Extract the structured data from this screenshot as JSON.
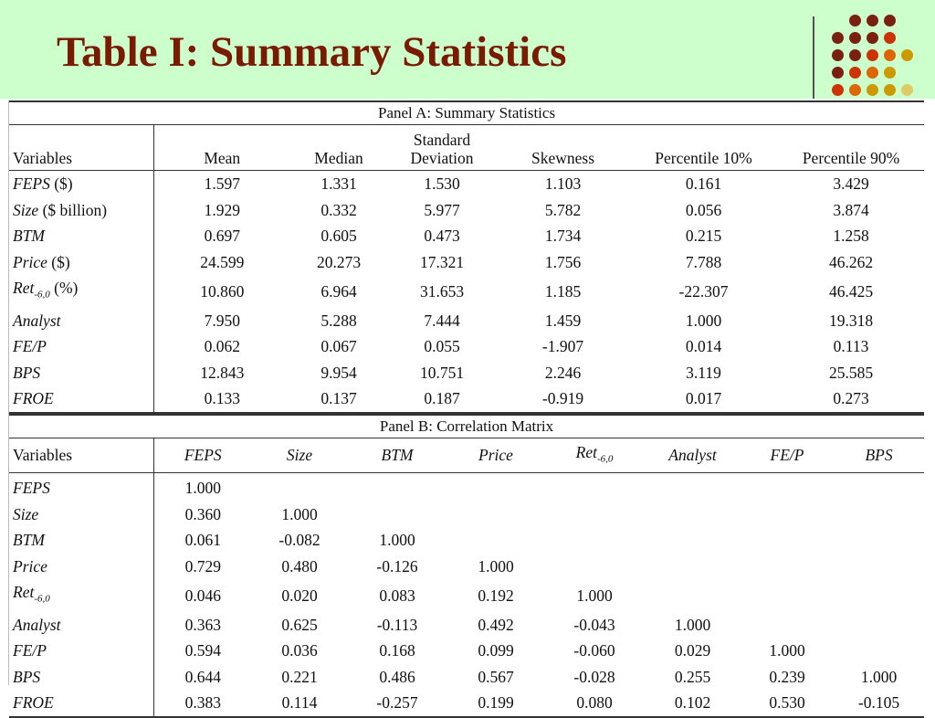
{
  "slide": {
    "title": "Table I: Summary Statistics"
  },
  "panel_a": {
    "title": "Panel A: Summary Statistics",
    "headers": [
      "Variables",
      "Mean",
      "Median",
      "Standard\nDeviation",
      "Skewness",
      "Percentile 10%",
      "Percentile 90%"
    ],
    "rows": [
      {
        "var": "FEPS",
        "unit": " ($)",
        "values": [
          "1.597",
          "1.331",
          "1.530",
          "1.103",
          "0.161",
          "3.429"
        ]
      },
      {
        "var": "Size",
        "unit": " ($ billion)",
        "values": [
          "1.929",
          "0.332",
          "5.977",
          "5.782",
          "0.056",
          "3.874"
        ]
      },
      {
        "var": "BTM",
        "unit": "",
        "values": [
          "0.697",
          "0.605",
          "0.473",
          "1.734",
          "0.215",
          "1.258"
        ]
      },
      {
        "var": "Price",
        "unit": " ($)",
        "values": [
          "24.599",
          "20.273",
          "17.321",
          "1.756",
          "7.788",
          "46.262"
        ]
      },
      {
        "var": "Ret",
        "sub": "-6,0",
        "unit": " (%)",
        "values": [
          "10.860",
          "6.964",
          "31.653",
          "1.185",
          "-22.307",
          "46.425"
        ]
      },
      {
        "var": "Analyst",
        "unit": "",
        "values": [
          "7.950",
          "5.288",
          "7.444",
          "1.459",
          "1.000",
          "19.318"
        ]
      },
      {
        "var": "FE/P",
        "unit": "",
        "values": [
          "0.062",
          "0.067",
          "0.055",
          "-1.907",
          "0.014",
          "0.113"
        ]
      },
      {
        "var": "BPS",
        "unit": "",
        "values": [
          "12.843",
          "9.954",
          "10.751",
          "2.246",
          "3.119",
          "25.585"
        ]
      },
      {
        "var": "FROE",
        "unit": "",
        "values": [
          "0.133",
          "0.137",
          "0.187",
          "-0.919",
          "0.017",
          "0.273"
        ]
      }
    ]
  },
  "panel_b": {
    "title": "Panel B: Correlation Matrix",
    "header_label": "Variables",
    "columns": [
      {
        "name": "FEPS"
      },
      {
        "name": "Size"
      },
      {
        "name": "BTM"
      },
      {
        "name": "Price"
      },
      {
        "name": "Ret",
        "sub": "-6,0"
      },
      {
        "name": "Analyst"
      },
      {
        "name": "FE/P"
      },
      {
        "name": "BPS"
      }
    ],
    "rows": [
      {
        "var": "FEPS",
        "values": [
          "1.000"
        ]
      },
      {
        "var": "Size",
        "values": [
          "0.360",
          "1.000"
        ]
      },
      {
        "var": "BTM",
        "values": [
          "0.061",
          "-0.082",
          "1.000"
        ]
      },
      {
        "var": "Price",
        "values": [
          "0.729",
          "0.480",
          "-0.126",
          "1.000"
        ]
      },
      {
        "var": "Ret",
        "sub": "-6,0",
        "values": [
          "0.046",
          "0.020",
          "0.083",
          "0.192",
          "1.000"
        ]
      },
      {
        "var": "Analyst",
        "values": [
          "0.363",
          "0.625",
          "-0.113",
          "0.492",
          "-0.043",
          "1.000"
        ]
      },
      {
        "var": "FE/P",
        "values": [
          "0.594",
          "0.036",
          "0.168",
          "0.099",
          "-0.060",
          "0.029",
          "1.000"
        ]
      },
      {
        "var": "BPS",
        "values": [
          "0.644",
          "0.221",
          "0.486",
          "0.567",
          "-0.028",
          "0.255",
          "0.239",
          "1.000"
        ]
      },
      {
        "var": "FROE",
        "values": [
          "0.383",
          "0.114",
          "-0.257",
          "0.199",
          "0.080",
          "0.102",
          "0.530",
          "-0.105"
        ]
      }
    ]
  },
  "decor": {
    "dot_colors": {
      "dark": "#7a2010",
      "red": "#cc3300",
      "orange": "#dd6600",
      "gold": "#cc9900",
      "pale": "#ddcc66"
    }
  }
}
